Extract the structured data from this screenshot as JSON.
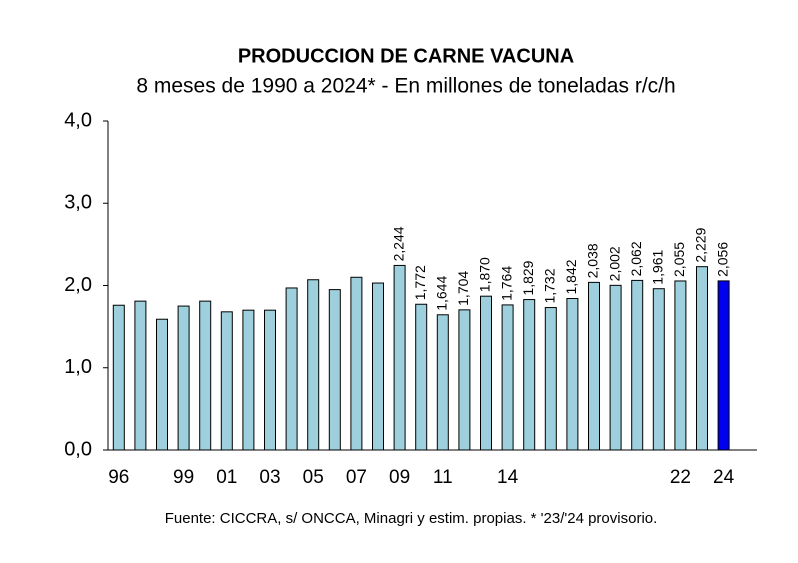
{
  "chart_data": {
    "type": "bar",
    "title": "PRODUCCION DE CARNE VACUNA",
    "subtitle": "8 meses de 1990 a 2024* - En millones de toneladas r/c/h",
    "note": "Fuente: CICCRA, s/ ONCCA, Minagri y estim. propias. * '23/'24 provisorio.",
    "categories": [
      "96",
      null,
      null,
      "99",
      null,
      "01",
      null,
      "03",
      null,
      "05",
      null,
      "07",
      null,
      "09",
      null,
      "11",
      null,
      null,
      "14",
      null,
      null,
      null,
      null,
      null,
      null,
      null,
      "22",
      null,
      "24"
    ],
    "values": [
      1.76,
      1.81,
      1.59,
      1.75,
      1.81,
      1.68,
      1.7,
      1.7,
      1.97,
      2.07,
      1.95,
      2.1,
      2.03,
      2.244,
      1.772,
      1.644,
      1.704,
      1.87,
      1.764,
      1.829,
      1.732,
      1.842,
      2.038,
      2.002,
      2.062,
      1.961,
      2.055,
      2.229,
      2.056
    ],
    "value_labels": [
      null,
      null,
      null,
      null,
      null,
      null,
      null,
      null,
      null,
      null,
      null,
      null,
      null,
      "2,244",
      "1,772",
      "1,644",
      "1,704",
      "1,870",
      "1,764",
      "1,829",
      "1,732",
      "1,842",
      "2,038",
      "2,002",
      "2,062",
      "1,961",
      "2,055",
      "2,229",
      "2,056"
    ],
    "colors": [
      "#9dd0dc",
      "#9dd0dc",
      "#9dd0dc",
      "#9dd0dc",
      "#9dd0dc",
      "#9dd0dc",
      "#9dd0dc",
      "#9dd0dc",
      "#9dd0dc",
      "#9dd0dc",
      "#9dd0dc",
      "#9dd0dc",
      "#9dd0dc",
      "#9dd0dc",
      "#9dd0dc",
      "#9dd0dc",
      "#9dd0dc",
      "#9dd0dc",
      "#9dd0dc",
      "#9dd0dc",
      "#9dd0dc",
      "#9dd0dc",
      "#9dd0dc",
      "#9dd0dc",
      "#9dd0dc",
      "#9dd0dc",
      "#9dd0dc",
      "#9dd0dc",
      "#0000ee"
    ],
    "ylim": [
      0,
      4
    ],
    "yticks": [
      {
        "value": 0,
        "label": "0,0"
      },
      {
        "value": 1,
        "label": "1,0"
      },
      {
        "value": 2,
        "label": "2,0"
      },
      {
        "value": 3,
        "label": "3,0"
      },
      {
        "value": 4,
        "label": "4,0"
      }
    ],
    "grid": false
  }
}
